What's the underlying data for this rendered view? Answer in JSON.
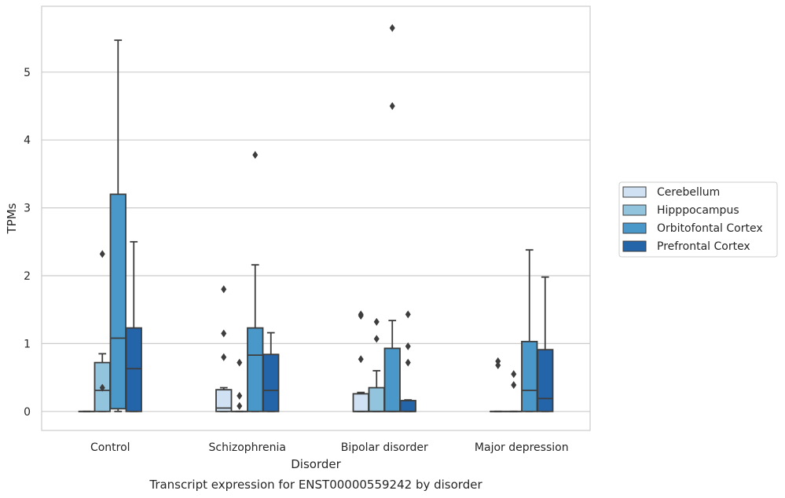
{
  "chart_data": {
    "type": "boxplot",
    "title": "",
    "caption": "Transcript expression for ENST00000559242 by disorder",
    "xlabel": "Disorder",
    "ylabel": "TPMs",
    "ylim": [
      -0.28,
      5.97
    ],
    "yticks": [
      0,
      1,
      2,
      3,
      4,
      5
    ],
    "ytick_labels": [
      "0",
      "1",
      "2",
      "3",
      "4",
      "5"
    ],
    "grid": "horizontal",
    "legend_position": "right",
    "categories": [
      "Control",
      "Schizophrenia",
      "Bipolar disorder",
      "Major depression"
    ],
    "series": [
      {
        "name": "Cerebellum",
        "color": "#cfe1f2",
        "boxes": [
          {
            "q1": 0,
            "median": 0,
            "q3": 0,
            "whisker_low": 0,
            "whisker_high": 0,
            "outliers": []
          },
          {
            "q1": 0,
            "median": 0.05,
            "q3": 0.32,
            "whisker_low": 0,
            "whisker_high": 0.35,
            "outliers": [
              0.8,
              1.15,
              1.8
            ]
          },
          {
            "q1": 0,
            "median": 0,
            "q3": 0.26,
            "whisker_low": 0,
            "whisker_high": 0.28,
            "outliers": [
              0.77,
              1.41,
              1.43
            ]
          },
          {
            "q1": 0,
            "median": 0,
            "q3": 0,
            "whisker_low": 0,
            "whisker_high": 0,
            "outliers": [
              0.68,
              0.74
            ]
          }
        ]
      },
      {
        "name": "Hipppocampus",
        "color": "#93c4de",
        "boxes": [
          {
            "q1": 0,
            "median": 0.31,
            "q3": 0.72,
            "whisker_low": 0,
            "whisker_high": 0.85,
            "outliers": [
              0.35,
              2.32
            ]
          },
          {
            "q1": 0,
            "median": 0,
            "q3": 0,
            "whisker_low": 0,
            "whisker_high": 0,
            "outliers": [
              0.08,
              0.23,
              0.72
            ]
          },
          {
            "q1": 0,
            "median": 0,
            "q3": 0.35,
            "whisker_low": 0,
            "whisker_high": 0.6,
            "outliers": [
              1.07,
              1.32
            ]
          },
          {
            "q1": 0,
            "median": 0,
            "q3": 0,
            "whisker_low": 0,
            "whisker_high": 0,
            "outliers": [
              0.39,
              0.55
            ]
          }
        ]
      },
      {
        "name": "Orbitofontal Cortex",
        "color": "#4a98c9",
        "boxes": [
          {
            "q1": 0.04,
            "median": 1.08,
            "q3": 3.2,
            "whisker_low": 0,
            "whisker_high": 5.47,
            "outliers": []
          },
          {
            "q1": 0,
            "median": 0.83,
            "q3": 1.23,
            "whisker_low": 0,
            "whisker_high": 2.16,
            "outliers": [
              3.78
            ]
          },
          {
            "q1": 0,
            "median": 0,
            "q3": 0.93,
            "whisker_low": 0,
            "whisker_high": 1.34,
            "outliers": [
              4.5,
              5.65
            ]
          },
          {
            "q1": 0,
            "median": 0.31,
            "q3": 1.03,
            "whisker_low": 0,
            "whisker_high": 2.38,
            "outliers": []
          }
        ]
      },
      {
        "name": "Prefrontal Cortex",
        "color": "#2464a9",
        "boxes": [
          {
            "q1": 0,
            "median": 0.63,
            "q3": 1.23,
            "whisker_low": 0,
            "whisker_high": 2.5,
            "outliers": []
          },
          {
            "q1": 0,
            "median": 0.31,
            "q3": 0.84,
            "whisker_low": 0,
            "whisker_high": 1.16,
            "outliers": []
          },
          {
            "q1": 0,
            "median": 0,
            "q3": 0.16,
            "whisker_low": 0,
            "whisker_high": 0.17,
            "outliers": [
              0.72,
              0.96,
              1.43
            ]
          },
          {
            "q1": 0,
            "median": 0.19,
            "q3": 0.91,
            "whisker_low": 0,
            "whisker_high": 1.98,
            "outliers": []
          }
        ]
      }
    ]
  }
}
